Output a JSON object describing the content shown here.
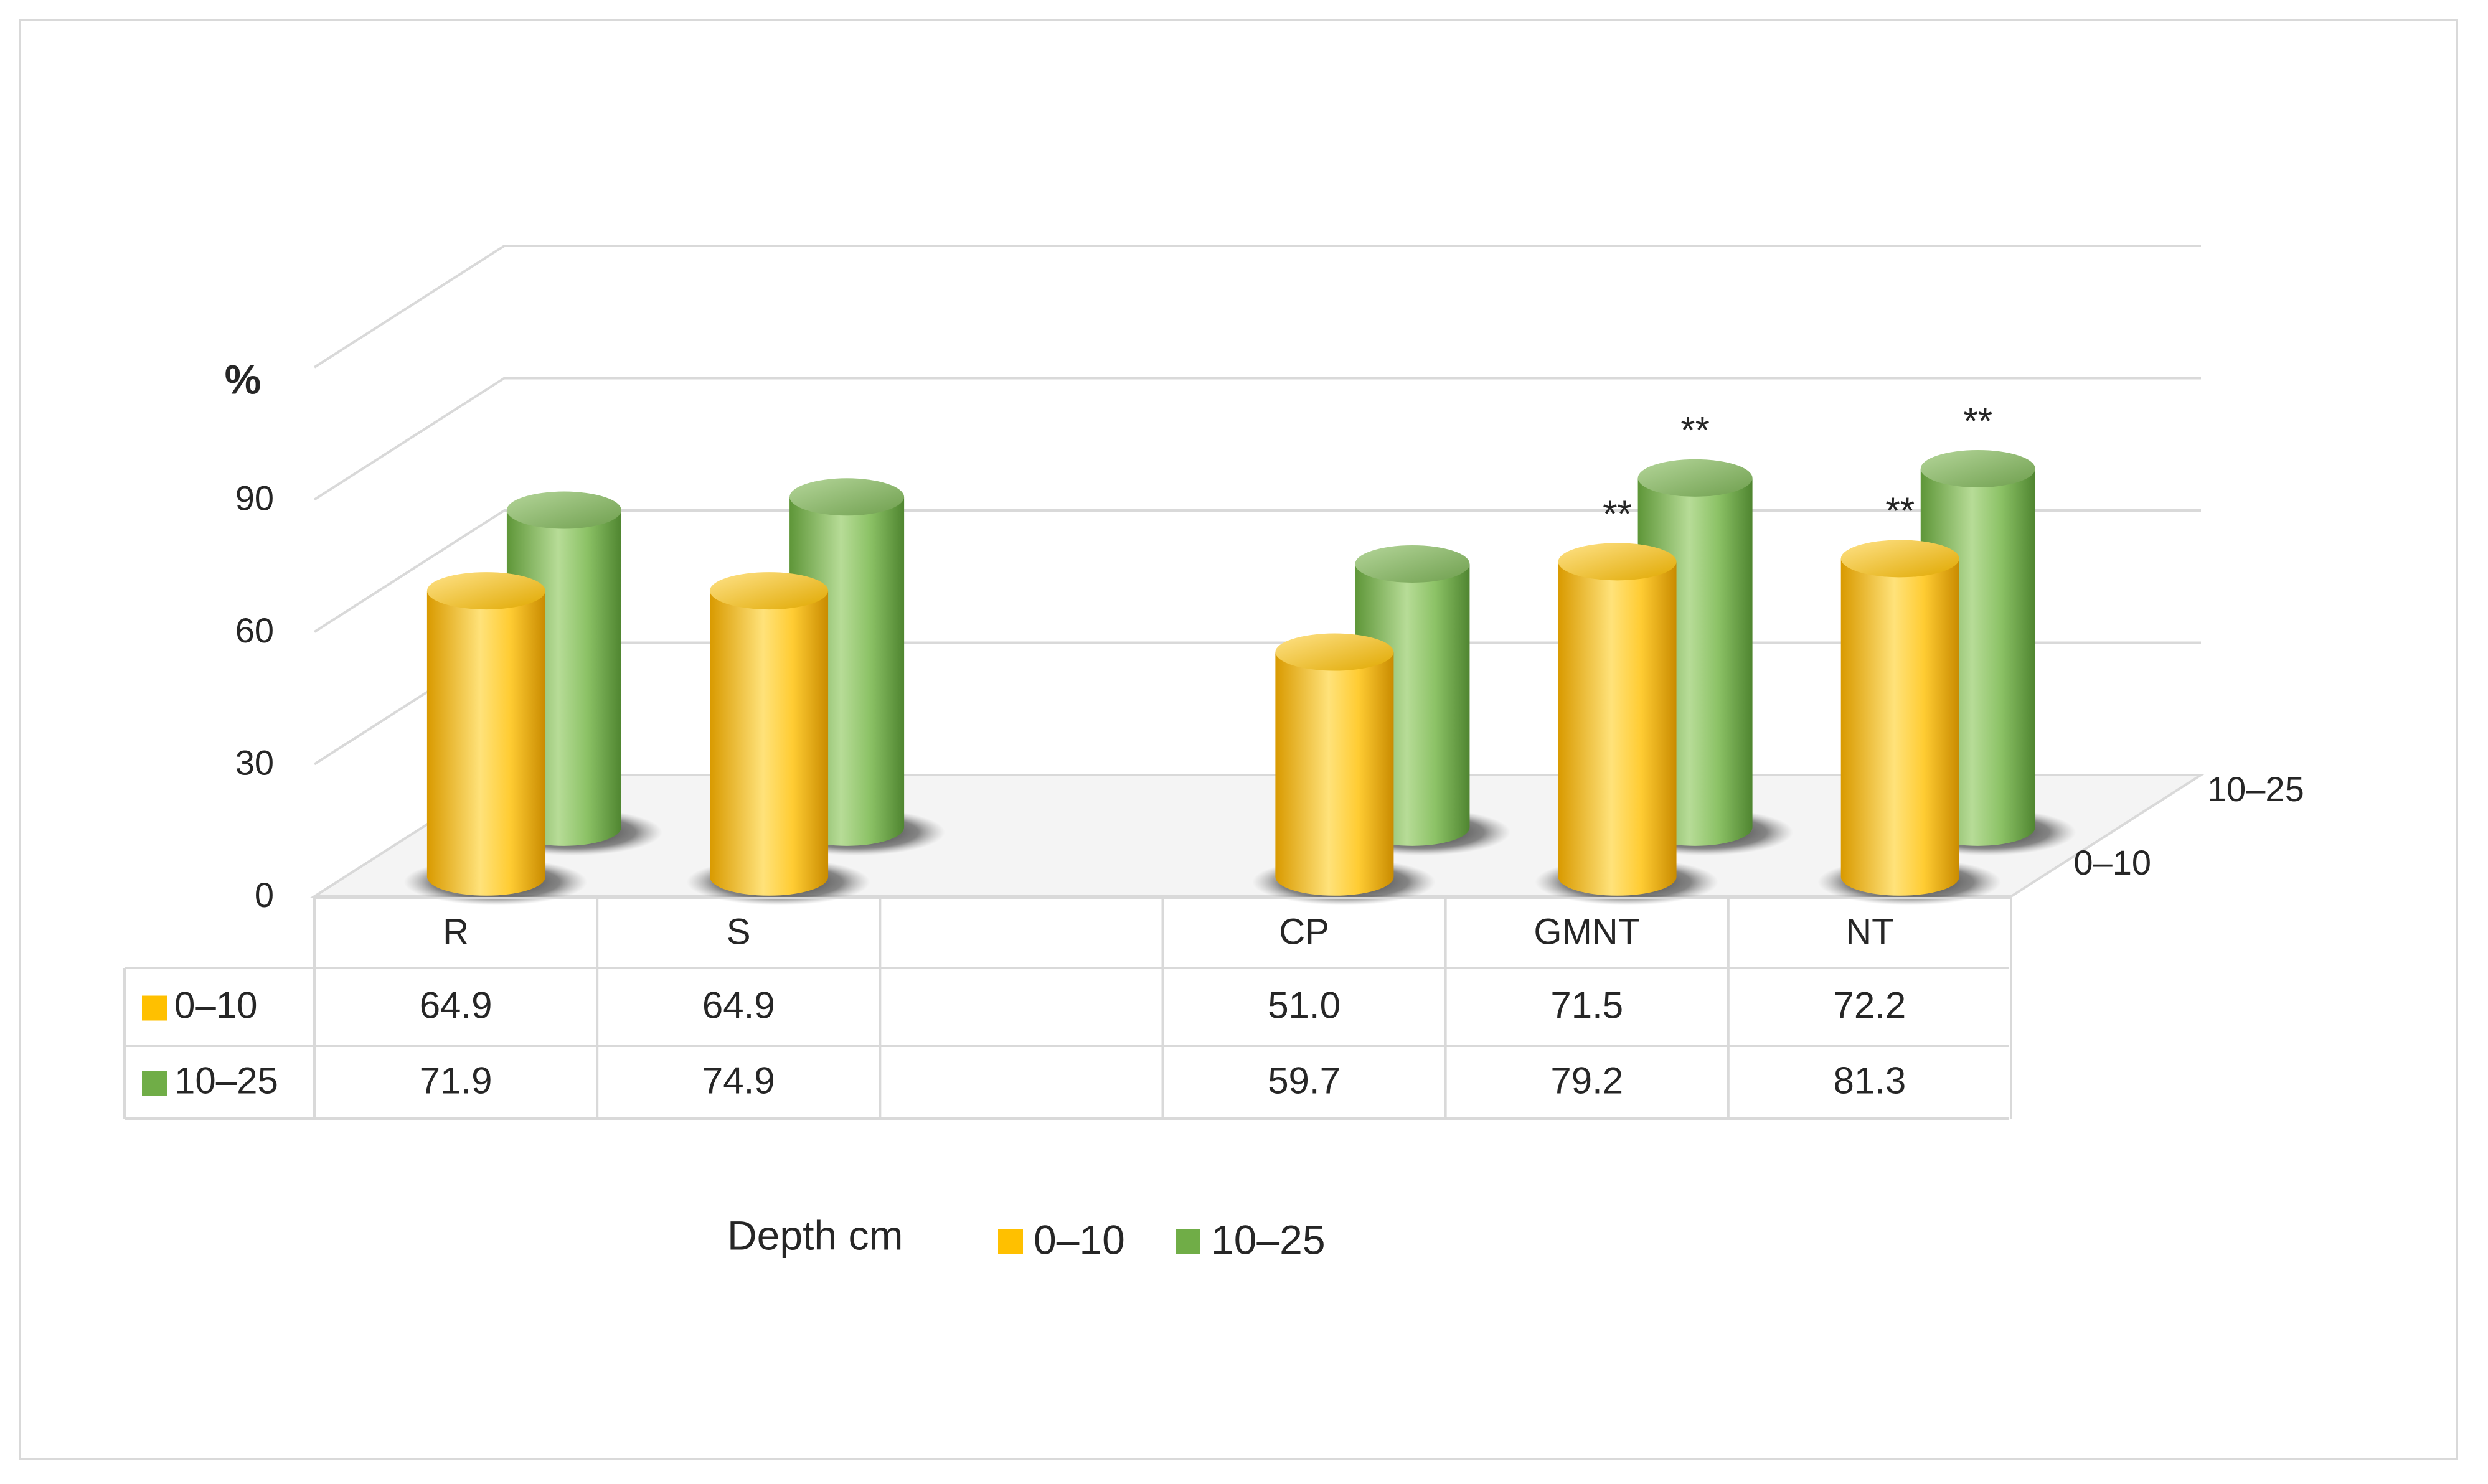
{
  "chart_data": {
    "type": "bar",
    "style": "3d-cylinder",
    "unit_label": "%",
    "categories": [
      "R",
      "S",
      "",
      "CP",
      "GMNT",
      "NT"
    ],
    "depth_axis_labels": [
      "0–10",
      "10–25"
    ],
    "yticks": [
      0,
      30,
      60,
      90
    ],
    "ylim": [
      0,
      120
    ],
    "series": [
      {
        "name": "0–10",
        "color": "#ffc000",
        "values": [
          64.9,
          64.9,
          null,
          51.0,
          71.5,
          72.2
        ],
        "table_values": [
          "64.9",
          "64.9",
          "",
          "51.0",
          "71.5",
          "72.2"
        ],
        "annotations": [
          "",
          "",
          "",
          "",
          "**",
          "**"
        ]
      },
      {
        "name": "10–25",
        "color": "#70ad47",
        "values": [
          71.9,
          74.9,
          null,
          59.7,
          79.2,
          81.3
        ],
        "table_values": [
          "71.9",
          "74.9",
          "",
          "59.7",
          "79.2",
          "81.3"
        ],
        "annotations": [
          "",
          "",
          "",
          "",
          "**",
          "**"
        ]
      }
    ],
    "legend": {
      "title": "Depth cm",
      "entries": [
        "0–10",
        "10–25"
      ],
      "position": "bottom"
    }
  }
}
